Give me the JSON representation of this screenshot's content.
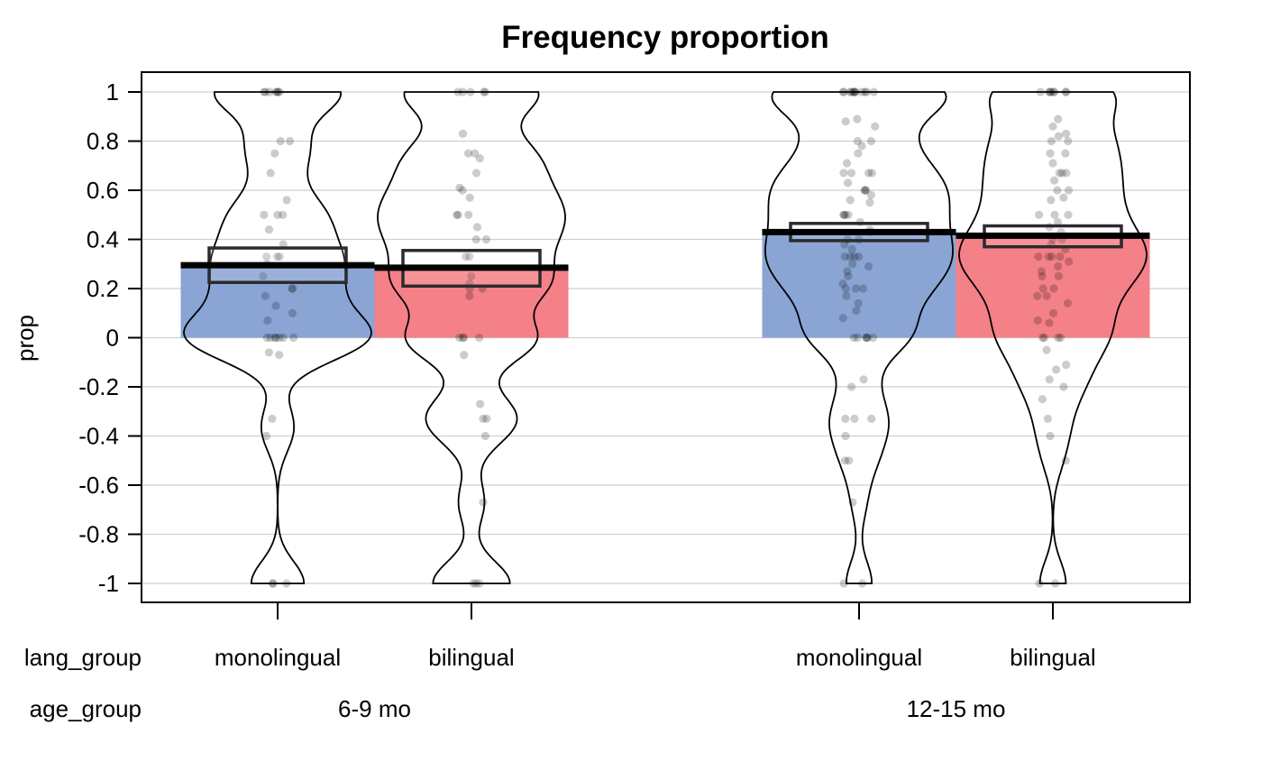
{
  "chart_data": {
    "type": "pirate-plot",
    "title": "Frequency proportion",
    "ylabel": "prop",
    "ylim": [
      -1,
      1
    ],
    "yticks": [
      1,
      0.8,
      0.6,
      0.4,
      0.2,
      0,
      -0.2,
      -0.4,
      -0.6,
      -0.8,
      -1
    ],
    "ytick_labels": [
      "1",
      "0.8",
      "0.6",
      "0.4",
      "0.2",
      "0",
      "-0.2",
      "-0.4",
      "-0.6",
      "-0.8",
      "-1"
    ],
    "grid": true,
    "factor_labels": [
      "lang_group",
      "age_group"
    ],
    "colors": {
      "monolingual": "#8aa4d4",
      "bilingual": "#f48088"
    },
    "age_groups": [
      "6-9 mo",
      "12-15 mo"
    ],
    "groups": [
      {
        "lang_group": "monolingual",
        "age_group": "6-9 mo",
        "mean": 0.295,
        "ci": [
          0.225,
          0.365
        ],
        "points": [
          1,
          1,
          1,
          1,
          1,
          1,
          1,
          0.8,
          0.8,
          0.75,
          0.67,
          0.56,
          0.5,
          0.5,
          0.5,
          0.44,
          0.38,
          0.33,
          0.33,
          0.33,
          0.3,
          0.25,
          0.2,
          0.2,
          0.17,
          0.13,
          0.1,
          0.07,
          0,
          0,
          0,
          0,
          0,
          0,
          0,
          -0.06,
          -0.07,
          -0.33,
          -0.4,
          -1,
          -1,
          -1
        ]
      },
      {
        "lang_group": "bilingual",
        "age_group": "6-9 mo",
        "mean": 0.285,
        "ci": [
          0.21,
          0.355
        ],
        "points": [
          1,
          1,
          1,
          1,
          1,
          0.83,
          0.75,
          0.75,
          0.73,
          0.67,
          0.61,
          0.6,
          0.57,
          0.5,
          0.5,
          0.5,
          0.45,
          0.4,
          0.4,
          0.33,
          0.33,
          0.25,
          0.22,
          0.2,
          0.2,
          0.17,
          0,
          0,
          0,
          0,
          -0.07,
          -0.27,
          -0.33,
          -0.33,
          -0.4,
          -0.67,
          -1,
          -1,
          -1
        ]
      },
      {
        "lang_group": "monolingual",
        "age_group": "12-15 mo",
        "mean": 0.43,
        "ci": [
          0.395,
          0.465
        ],
        "points": [
          1,
          1,
          1,
          1,
          1,
          1,
          1,
          1,
          1,
          1,
          1,
          1,
          0.89,
          0.88,
          0.86,
          0.8,
          0.8,
          0.78,
          0.75,
          0.71,
          0.67,
          0.67,
          0.67,
          0.67,
          0.63,
          0.6,
          0.6,
          0.6,
          0.58,
          0.56,
          0.55,
          0.5,
          0.5,
          0.5,
          0.5,
          0.47,
          0.44,
          0.43,
          0.4,
          0.4,
          0.38,
          0.36,
          0.33,
          0.33,
          0.33,
          0.33,
          0.3,
          0.29,
          0.27,
          0.25,
          0.22,
          0.2,
          0.2,
          0.2,
          0.17,
          0.14,
          0.11,
          0.08,
          0,
          0,
          0,
          0,
          0,
          0,
          -0.17,
          -0.2,
          -0.33,
          -0.33,
          -0.33,
          -0.4,
          -0.5,
          -0.5,
          -0.67,
          -1,
          -1
        ]
      },
      {
        "lang_group": "bilingual",
        "age_group": "12-15 mo",
        "mean": 0.415,
        "ci": [
          0.37,
          0.455
        ],
        "points": [
          1,
          1,
          1,
          1,
          1,
          1,
          1,
          1,
          0.89,
          0.86,
          0.83,
          0.82,
          0.8,
          0.8,
          0.75,
          0.75,
          0.71,
          0.67,
          0.67,
          0.67,
          0.64,
          0.6,
          0.6,
          0.57,
          0.56,
          0.5,
          0.5,
          0.5,
          0.47,
          0.45,
          0.43,
          0.4,
          0.4,
          0.38,
          0.36,
          0.33,
          0.33,
          0.33,
          0.33,
          0.31,
          0.29,
          0.27,
          0.25,
          0.25,
          0.2,
          0.2,
          0.17,
          0.17,
          0.14,
          0.1,
          0.07,
          0.06,
          0,
          0,
          0,
          0,
          -0.05,
          -0.11,
          -0.13,
          -0.17,
          -0.2,
          -0.25,
          -0.33,
          -0.4,
          -0.5,
          -1,
          -1
        ]
      }
    ]
  }
}
